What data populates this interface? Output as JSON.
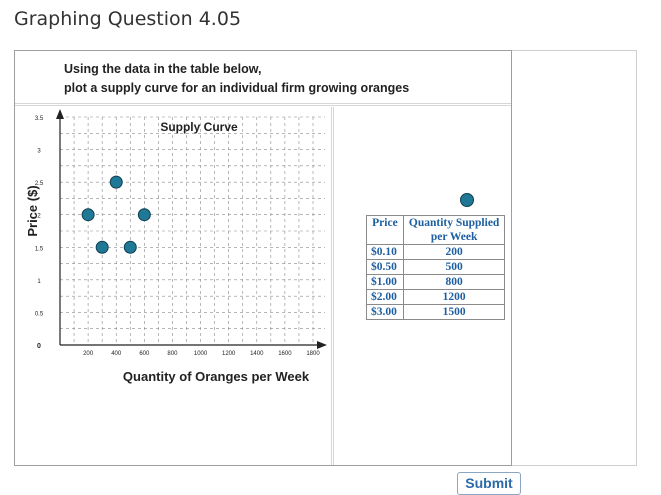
{
  "page": {
    "title": "Graphing Question 4.05"
  },
  "instructions": {
    "line1": "Using the data in the  table below,",
    "line2": "plot a supply curve for an individual firm growing oranges"
  },
  "colors": {
    "point_fill": "#1f7896",
    "point_stroke": "#0f3f4f",
    "table_text": "#1d5fa0"
  },
  "chart_data": {
    "type": "scatter",
    "title": "Supply Curve",
    "xlabel": "Quantity of Oranges per Week",
    "ylabel": "Price ($)",
    "xlim": [
      0,
      1800
    ],
    "ylim": [
      0,
      3.5
    ],
    "xticks": [
      "200",
      "400",
      "600",
      "800",
      "1000",
      "1200",
      "1400",
      "1600",
      "1800"
    ],
    "yticks": [
      "0",
      "0.5",
      "1",
      "1.5",
      "2",
      "2.5",
      "3",
      "3.5"
    ],
    "grid": true,
    "points": [
      {
        "x": 200,
        "y": 2
      },
      {
        "x": 300,
        "y": 1.5
      },
      {
        "x": 400,
        "y": 2.5
      },
      {
        "x": 500,
        "y": 1.5
      },
      {
        "x": 600,
        "y": 2
      }
    ]
  },
  "table": {
    "headers": [
      "Price",
      "Quantity Supplied per Week"
    ],
    "header_q_line1": "Quantity Supplied",
    "header_q_line2": "per Week",
    "rows": [
      {
        "price": "$0.10",
        "quantity": "200"
      },
      {
        "price": "$0.50",
        "quantity": "500"
      },
      {
        "price": "$1.00",
        "quantity": "800"
      },
      {
        "price": "$2.00",
        "quantity": "1200"
      },
      {
        "price": "$3.00",
        "quantity": "1500"
      }
    ]
  },
  "legend": {
    "icon": "point-tool-icon"
  },
  "buttons": {
    "submit": "Submit"
  }
}
